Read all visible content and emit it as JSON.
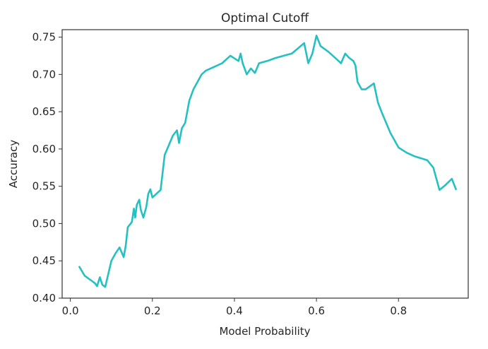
{
  "chart_data": {
    "type": "line",
    "title": "Optimal Cutoff",
    "xlabel": "Model Probability",
    "ylabel": "Accuracy",
    "xlim": [
      -0.02,
      0.97
    ],
    "ylim": [
      0.4,
      0.76
    ],
    "x_ticks": [
      0.0,
      0.2,
      0.4,
      0.6,
      0.8
    ],
    "x_tick_labels": [
      "0.0",
      "0.2",
      "0.4",
      "0.6",
      "0.8"
    ],
    "y_ticks": [
      0.4,
      0.45,
      0.5,
      0.55,
      0.6,
      0.65,
      0.7,
      0.75
    ],
    "y_tick_labels": [
      "0.40",
      "0.45",
      "0.50",
      "0.55",
      "0.60",
      "0.65",
      "0.70",
      "0.75"
    ],
    "grid": false,
    "legend": "none",
    "series": [
      {
        "color": "#25c0c2",
        "x": [
          0.022,
          0.035,
          0.06,
          0.065,
          0.072,
          0.078,
          0.085,
          0.1,
          0.11,
          0.12,
          0.13,
          0.135,
          0.14,
          0.15,
          0.155,
          0.158,
          0.162,
          0.168,
          0.172,
          0.178,
          0.185,
          0.19,
          0.195,
          0.2,
          0.21,
          0.22,
          0.23,
          0.24,
          0.25,
          0.26,
          0.265,
          0.272,
          0.28,
          0.29,
          0.3,
          0.31,
          0.32,
          0.33,
          0.35,
          0.37,
          0.39,
          0.41,
          0.415,
          0.42,
          0.43,
          0.44,
          0.45,
          0.46,
          0.48,
          0.5,
          0.52,
          0.54,
          0.57,
          0.58,
          0.59,
          0.6,
          0.61,
          0.63,
          0.65,
          0.66,
          0.67,
          0.68,
          0.69,
          0.695,
          0.7,
          0.71,
          0.72,
          0.74,
          0.75,
          0.76,
          0.77,
          0.78,
          0.8,
          0.82,
          0.84,
          0.87,
          0.885,
          0.9,
          0.915,
          0.93,
          0.94
        ],
        "y": [
          0.442,
          0.43,
          0.42,
          0.416,
          0.428,
          0.418,
          0.415,
          0.45,
          0.46,
          0.468,
          0.455,
          0.47,
          0.495,
          0.502,
          0.52,
          0.508,
          0.525,
          0.532,
          0.518,
          0.508,
          0.522,
          0.54,
          0.546,
          0.535,
          0.54,
          0.545,
          0.592,
          0.605,
          0.618,
          0.625,
          0.608,
          0.628,
          0.635,
          0.665,
          0.68,
          0.69,
          0.7,
          0.705,
          0.71,
          0.715,
          0.725,
          0.718,
          0.728,
          0.715,
          0.7,
          0.708,
          0.702,
          0.715,
          0.718,
          0.722,
          0.725,
          0.728,
          0.742,
          0.715,
          0.728,
          0.752,
          0.738,
          0.73,
          0.72,
          0.715,
          0.728,
          0.722,
          0.718,
          0.712,
          0.69,
          0.68,
          0.68,
          0.688,
          0.662,
          0.648,
          0.635,
          0.622,
          0.602,
          0.595,
          0.59,
          0.585,
          0.575,
          0.545,
          0.552,
          0.56,
          0.546
        ]
      }
    ]
  }
}
